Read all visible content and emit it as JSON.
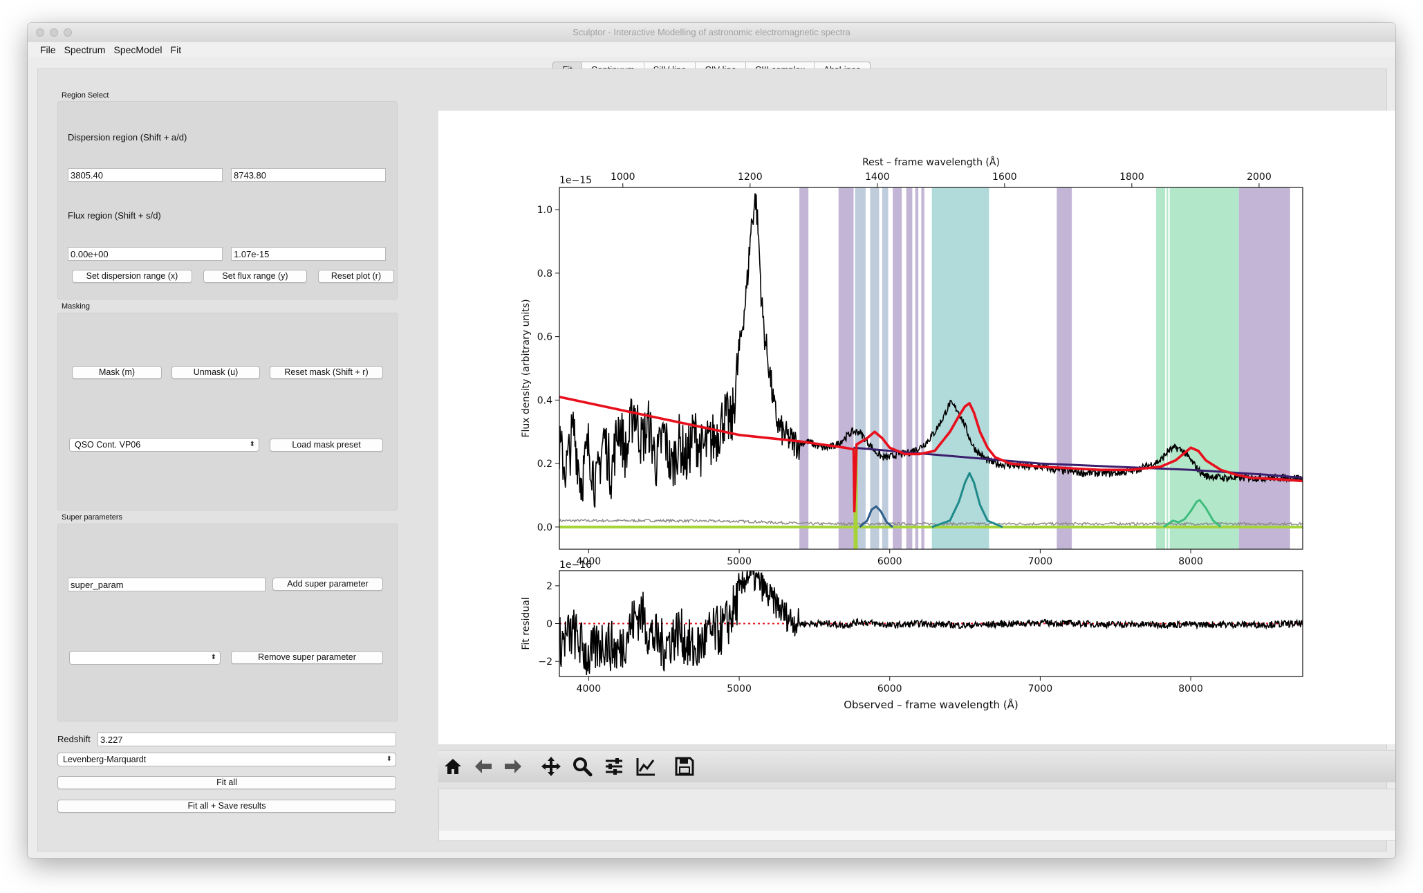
{
  "window": {
    "title": "Sculptor - Interactive Modelling of astronomic electromagnetic spectra"
  },
  "menubar": [
    "File",
    "Spectrum",
    "SpecModel",
    "Fit"
  ],
  "tabs": [
    {
      "label": "Fit",
      "active": true
    },
    {
      "label": "Continuum",
      "active": false
    },
    {
      "label": "SiIV line",
      "active": false
    },
    {
      "label": "CIV line",
      "active": false
    },
    {
      "label": "CIII complex",
      "active": false
    },
    {
      "label": "AbsLines",
      "active": false
    }
  ],
  "region_select": {
    "group_label": "Region Select",
    "dispersion_label": "Dispersion region (Shift + a/d)",
    "disp_min": "3805.40",
    "disp_max": "8743.80",
    "flux_label": "Flux region (Shift + s/d)",
    "flux_min": "0.00e+00",
    "flux_max": "1.07e-15",
    "btn_disp": "Set dispersion range (x)",
    "btn_flux": "Set flux range (y)",
    "btn_reset": "Reset plot (r)"
  },
  "masking": {
    "group_label": "Masking",
    "btn_mask": "Mask (m)",
    "btn_unmask": "Unmask (u)",
    "btn_reset": "Reset mask (Shift + r)",
    "preset": "QSO Cont. VP06",
    "btn_load": "Load mask preset"
  },
  "super_params": {
    "group_label": "Super parameters",
    "input": "super_param",
    "btn_add": "Add super parameter",
    "select": "",
    "btn_remove": "Remove super parameter"
  },
  "fit": {
    "redshift_label": "Redshift",
    "redshift": "3.227",
    "method": "Levenberg-Marquardt",
    "btn_fit": "Fit all",
    "btn_fit_save": "Fit all + Save results"
  },
  "toolbar_icons": [
    "home-icon",
    "back-arrow-icon",
    "forward-arrow-icon",
    "pan-icon",
    "zoom-icon",
    "configure-subplots-icon",
    "edit-curves-icon",
    "save-icon"
  ],
  "colors": {
    "spectrum": "#000000",
    "model": "#e8101d",
    "continuum": "#3b1f6e",
    "error": "#888888",
    "zero_line": "#a6d33a",
    "siiv": "#2f5e8c",
    "civ": "#1f8a8a",
    "ciii": "#3dbd7d",
    "mask_purple": "#b9a8cf",
    "mask_blue": "#b4c3d6",
    "mask_teal": "#a3d3d3",
    "mask_green": "#a6e3bf"
  },
  "chart_data": [
    {
      "type": "line",
      "title": "",
      "top_xlabel": "Rest – frame wavelength (Å)",
      "top_xticks": [
        "1000",
        "1200",
        "1400",
        "1600",
        "1800",
        "2000"
      ],
      "top_xtick_values": [
        1000,
        1200,
        1400,
        1600,
        1800,
        2000
      ],
      "xlabel": "",
      "ylabel": "Flux density (arbitrary units)",
      "y_offset_label": "1e−15",
      "xlim": [
        3805.4,
        8743.8
      ],
      "ylim": [
        -0.07,
        1.07
      ],
      "xticks": [
        "4000",
        "5000",
        "6000",
        "7000",
        "8000"
      ],
      "xtick_values": [
        4000,
        5000,
        6000,
        7000,
        8000
      ],
      "yticks": [
        "0.0",
        "0.2",
        "0.4",
        "0.6",
        "0.8",
        "1.0"
      ],
      "ytick_values": [
        0.0,
        0.2,
        0.4,
        0.6,
        0.8,
        1.0
      ],
      "mask_regions": [
        {
          "x": [
            5400,
            5460
          ],
          "color": "purple"
        },
        {
          "x": [
            5660,
            5760
          ],
          "color": "purple"
        },
        {
          "x": [
            5770,
            5840
          ],
          "color": "blue"
        },
        {
          "x": [
            5870,
            5930
          ],
          "color": "blue"
        },
        {
          "x": [
            5950,
            5990
          ],
          "color": "blue"
        },
        {
          "x": [
            6020,
            6080
          ],
          "color": "purple"
        },
        {
          "x": [
            6110,
            6150
          ],
          "color": "purple"
        },
        {
          "x": [
            6170,
            6190
          ],
          "color": "purple"
        },
        {
          "x": [
            6210,
            6230
          ],
          "color": "purple"
        },
        {
          "x": [
            6280,
            6660
          ],
          "color": "teal"
        },
        {
          "x": [
            7110,
            7210
          ],
          "color": "purple"
        },
        {
          "x": [
            7770,
            7830
          ],
          "color": "green"
        },
        {
          "x": [
            7840,
            7850
          ],
          "color": "green"
        },
        {
          "x": [
            7860,
            8320
          ],
          "color": "green"
        },
        {
          "x": [
            8320,
            8660
          ],
          "color": "purple"
        }
      ],
      "series": [
        {
          "name": "spectrum",
          "x": [
            3805,
            3850,
            3900,
            3950,
            4000,
            4050,
            4100,
            4150,
            4200,
            4250,
            4300,
            4350,
            4400,
            4450,
            4500,
            4550,
            4600,
            4650,
            4700,
            4750,
            4800,
            4850,
            4900,
            4950,
            5000,
            5050,
            5080,
            5110,
            5130,
            5150,
            5170,
            5200,
            5230,
            5260,
            5300,
            5350,
            5400,
            5450,
            5500,
            5550,
            5600,
            5650,
            5700,
            5750,
            5800,
            5850,
            5900,
            5950,
            6000,
            6050,
            6100,
            6150,
            6200,
            6250,
            6300,
            6350,
            6400,
            6450,
            6500,
            6530,
            6560,
            6600,
            6650,
            6700,
            6800,
            6900,
            7000,
            7100,
            7200,
            7300,
            7400,
            7500,
            7600,
            7700,
            7800,
            7850,
            7900,
            7950,
            8000,
            8050,
            8100,
            8150,
            8200,
            8300,
            8400,
            8500,
            8600,
            8743
          ],
          "values": [
            0.25,
            0.18,
            0.31,
            0.14,
            0.26,
            0.12,
            0.29,
            0.17,
            0.33,
            0.22,
            0.38,
            0.27,
            0.32,
            0.2,
            0.3,
            0.18,
            0.27,
            0.21,
            0.3,
            0.24,
            0.26,
            0.29,
            0.35,
            0.32,
            0.55,
            0.75,
            0.95,
            1.04,
            0.9,
            0.7,
            0.6,
            0.5,
            0.38,
            0.32,
            0.29,
            0.27,
            0.26,
            0.27,
            0.26,
            0.25,
            0.25,
            0.26,
            0.28,
            0.3,
            0.3,
            0.27,
            0.24,
            0.22,
            0.22,
            0.23,
            0.23,
            0.24,
            0.25,
            0.27,
            0.3,
            0.34,
            0.39,
            0.37,
            0.32,
            0.28,
            0.25,
            0.23,
            0.21,
            0.2,
            0.195,
            0.19,
            0.19,
            0.18,
            0.175,
            0.17,
            0.17,
            0.17,
            0.175,
            0.19,
            0.21,
            0.24,
            0.25,
            0.24,
            0.21,
            0.18,
            0.16,
            0.16,
            0.155,
            0.155,
            0.155,
            0.155,
            0.155,
            0.155
          ]
        },
        {
          "name": "model",
          "x": [
            3805,
            4200,
            4600,
            5000,
            5400,
            5700,
            5760,
            5765,
            5780,
            5850,
            5900,
            5950,
            6000,
            6100,
            6200,
            6300,
            6400,
            6460,
            6500,
            6530,
            6560,
            6600,
            6650,
            6700,
            6800,
            7000,
            7200,
            7400,
            7600,
            7800,
            7900,
            8000,
            8050,
            8100,
            8200,
            8300,
            8400,
            8600,
            8743
          ],
          "values": [
            0.41,
            0.37,
            0.33,
            0.29,
            0.27,
            0.25,
            0.245,
            0.05,
            0.26,
            0.28,
            0.3,
            0.28,
            0.25,
            0.23,
            0.23,
            0.24,
            0.3,
            0.35,
            0.38,
            0.39,
            0.36,
            0.3,
            0.25,
            0.22,
            0.2,
            0.19,
            0.185,
            0.18,
            0.18,
            0.19,
            0.21,
            0.25,
            0.24,
            0.21,
            0.18,
            0.165,
            0.155,
            0.15,
            0.145
          ]
        },
        {
          "name": "continuum",
          "x": [
            5760,
            6000,
            6500,
            7000,
            7500,
            8000,
            8500,
            8743
          ],
          "values": [
            0.25,
            0.24,
            0.22,
            0.2,
            0.19,
            0.18,
            0.165,
            0.155
          ]
        },
        {
          "name": "siiv",
          "x": [
            5800,
            5850,
            5880,
            5910,
            5940,
            5980,
            6020
          ],
          "values": [
            0.0,
            0.02,
            0.055,
            0.065,
            0.05,
            0.015,
            0.0
          ]
        },
        {
          "name": "civ",
          "x": [
            6280,
            6400,
            6460,
            6500,
            6530,
            6560,
            6600,
            6650,
            6750
          ],
          "values": [
            0.0,
            0.02,
            0.08,
            0.14,
            0.17,
            0.14,
            0.07,
            0.02,
            0.0
          ]
        },
        {
          "name": "ciii",
          "x": [
            7820,
            7880,
            7920,
            7960,
            8000,
            8040,
            8060,
            8100,
            8150,
            8200
          ],
          "values": [
            0.0,
            0.02,
            0.015,
            0.025,
            0.05,
            0.08,
            0.085,
            0.06,
            0.02,
            0.0
          ]
        },
        {
          "name": "error",
          "x": [
            3805,
            4500,
            5000,
            5500,
            6000,
            7000,
            8000,
            8743
          ],
          "values": [
            0.02,
            0.02,
            0.018,
            0.01,
            0.01,
            0.01,
            0.01,
            0.01
          ]
        }
      ]
    },
    {
      "type": "line",
      "title": "",
      "xlabel": "Observed – frame wavelength (Å)",
      "ylabel": "Fit residual",
      "y_offset_label": "1e−16",
      "xlim": [
        3805.4,
        8743.8
      ],
      "ylim": [
        -2.8,
        2.8
      ],
      "xticks": [
        "4000",
        "5000",
        "6000",
        "7000",
        "8000"
      ],
      "xtick_values": [
        4000,
        5000,
        6000,
        7000,
        8000
      ],
      "yticks": [
        "−2",
        "0",
        "2"
      ],
      "ytick_values": [
        -2,
        0,
        2
      ],
      "series": [
        {
          "name": "residual",
          "x": [
            3805,
            3900,
            4000,
            4100,
            4200,
            4300,
            4350,
            4400,
            4500,
            4600,
            4700,
            4800,
            4900,
            4950,
            5000,
            5050,
            5100,
            5150,
            5200,
            5250,
            5300,
            5350,
            5400,
            5500,
            5600,
            5700,
            5800,
            6000,
            6200,
            6500,
            7000,
            7500,
            8000,
            8500,
            8743
          ],
          "values": [
            -1.0,
            -0.5,
            -1.8,
            -0.9,
            -1.5,
            0.2,
            0.6,
            -0.5,
            -1.2,
            -0.4,
            -1.5,
            -0.6,
            -0.3,
            0.5,
            1.5,
            2.6,
            2.4,
            2.0,
            1.4,
            1.0,
            0.5,
            0.2,
            0.0,
            0.0,
            0.0,
            -0.1,
            0.1,
            -0.1,
            0.0,
            -0.1,
            0.05,
            -0.05,
            -0.05,
            -0.05,
            0.0
          ]
        }
      ]
    }
  ]
}
